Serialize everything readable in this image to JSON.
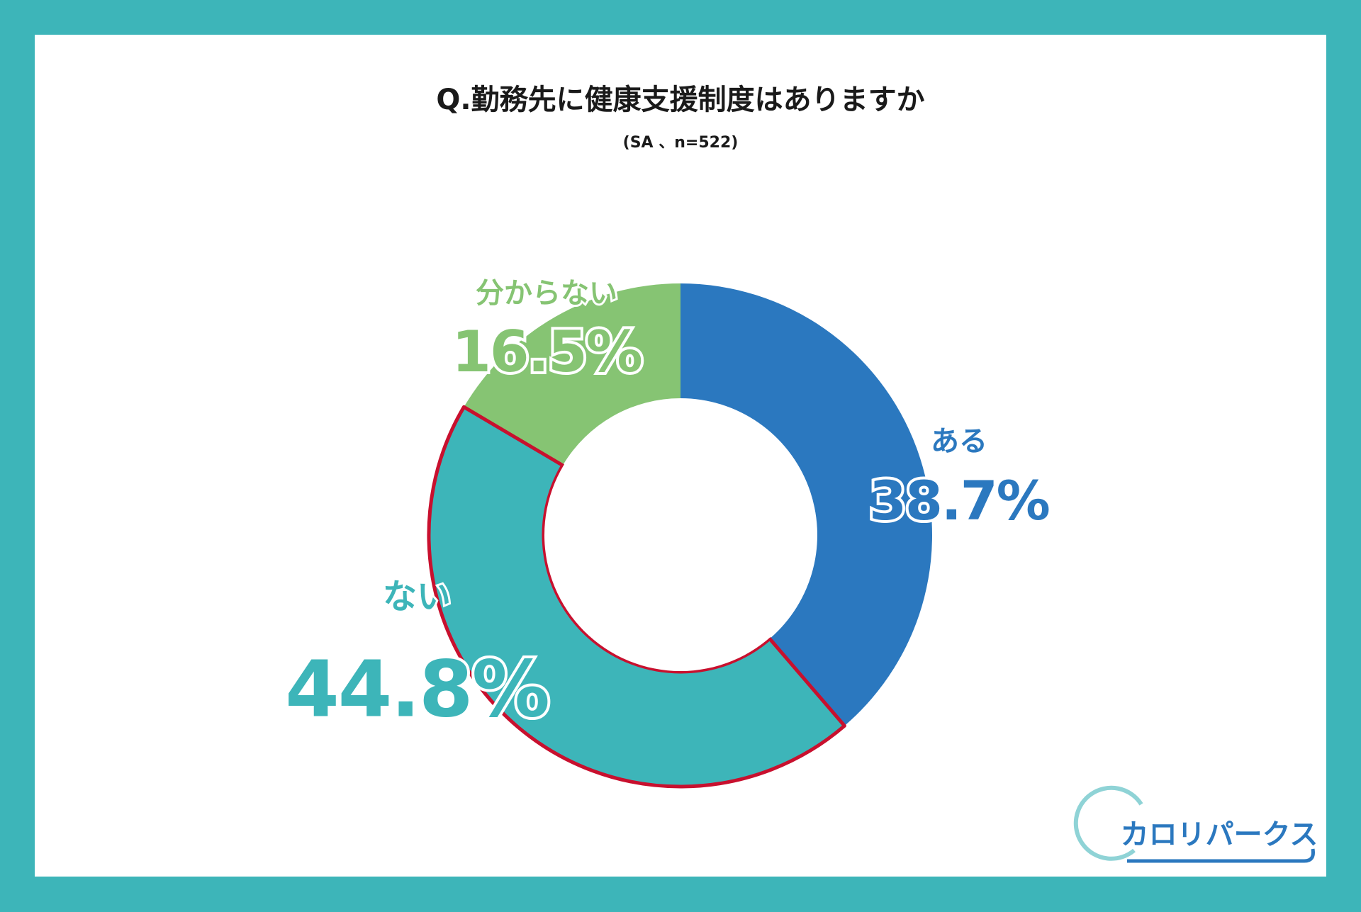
{
  "chart_data": {
    "type": "donut",
    "title": "Q.勤務先に健康支援制度はありますか",
    "subtitle": "(SA 、n=522)",
    "categories": [
      "ある",
      "ない",
      "分からない"
    ],
    "values": [
      38.7,
      44.8,
      16.5
    ],
    "value_labels": [
      "38.7%",
      "44.8%",
      "16.5%"
    ],
    "colors": [
      "#2b78bf",
      "#3db5b9",
      "#86c473"
    ],
    "highlight": {
      "category": "ない",
      "color": "#c8102e"
    }
  },
  "logo": "カロリパークス"
}
